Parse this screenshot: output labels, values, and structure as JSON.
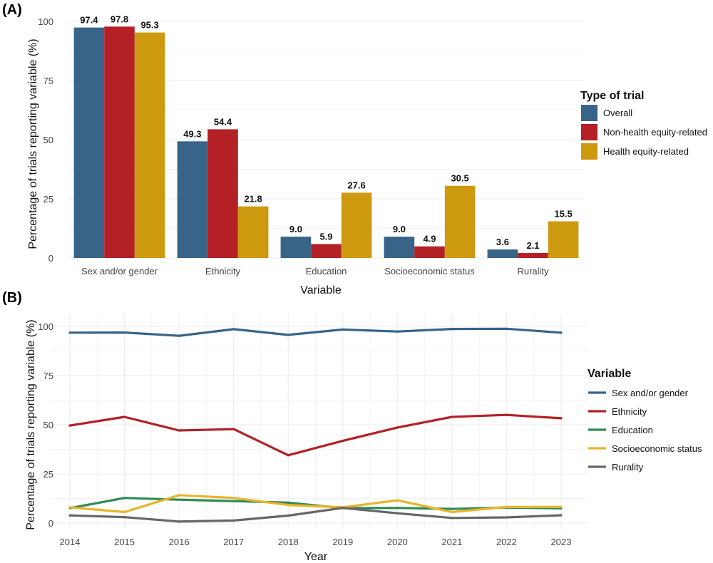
{
  "panels": {
    "a_label": "(A)",
    "b_label": "(B)"
  },
  "chart_data": [
    {
      "type": "bar",
      "title": "",
      "xlabel": "Variable",
      "ylabel": "Percentage of trials reporting variable (%)",
      "ylim": [
        0,
        100
      ],
      "yticks": [
        0,
        25,
        50,
        75,
        100
      ],
      "grid": true,
      "categories": [
        "Sex and/or gender",
        "Ethnicity",
        "Education",
        "Socioeconomic status",
        "Rurality"
      ],
      "series": [
        {
          "name": "Overall",
          "color": "#386488",
          "values": [
            97.4,
            49.3,
            9.0,
            9.0,
            3.6
          ],
          "labels": [
            "97.4",
            "49.3",
            "9.0",
            "9.0",
            "3.6"
          ]
        },
        {
          "name": "Non-health equity-related",
          "color": "#b32025",
          "values": [
            97.8,
            54.4,
            5.9,
            4.9,
            2.1
          ],
          "labels": [
            "97.8",
            "54.4",
            "5.9",
            "4.9",
            "2.1"
          ]
        },
        {
          "name": "Health equity-related",
          "color": "#cd990f",
          "values": [
            95.3,
            21.8,
            27.6,
            30.5,
            15.5
          ],
          "labels": [
            "95.3",
            "21.8",
            "27.6",
            "30.5",
            "15.5"
          ]
        }
      ],
      "legend": {
        "title": "Type of trial",
        "position": "right"
      }
    },
    {
      "type": "line",
      "title": "",
      "xlabel": "Year",
      "ylabel": "Percentage of trials reporting variable (%)",
      "ylim": [
        0,
        100
      ],
      "yticks": [
        0,
        25,
        50,
        75,
        100
      ],
      "grid": true,
      "x": [
        2014,
        2015,
        2016,
        2017,
        2018,
        2019,
        2020,
        2021,
        2022,
        2023
      ],
      "series": [
        {
          "name": "Sex and/or gender",
          "color": "#386488",
          "values": [
            96.8,
            96.9,
            95.2,
            98.6,
            95.7,
            98.4,
            97.4,
            98.7,
            98.8,
            96.8
          ]
        },
        {
          "name": "Ethnicity",
          "color": "#b32025",
          "values": [
            49.6,
            54.0,
            47.1,
            47.8,
            34.5,
            41.8,
            48.6,
            54.0,
            55.0,
            53.3
          ]
        },
        {
          "name": "Education",
          "color": "#2e8b57",
          "values": [
            7.6,
            12.8,
            11.9,
            11.2,
            10.4,
            7.6,
            7.7,
            7.2,
            7.9,
            7.5
          ]
        },
        {
          "name": "Socioeconomic status",
          "color": "#e8b52a",
          "values": [
            8.0,
            5.6,
            14.2,
            12.8,
            9.2,
            8.0,
            11.6,
            5.6,
            8.2,
            8.2
          ]
        },
        {
          "name": "Rurality",
          "color": "#666666",
          "values": [
            3.9,
            3.0,
            0.8,
            1.3,
            3.8,
            7.7,
            5.0,
            2.6,
            2.9,
            4.0
          ]
        }
      ],
      "legend": {
        "title": "Variable",
        "position": "right"
      }
    }
  ]
}
